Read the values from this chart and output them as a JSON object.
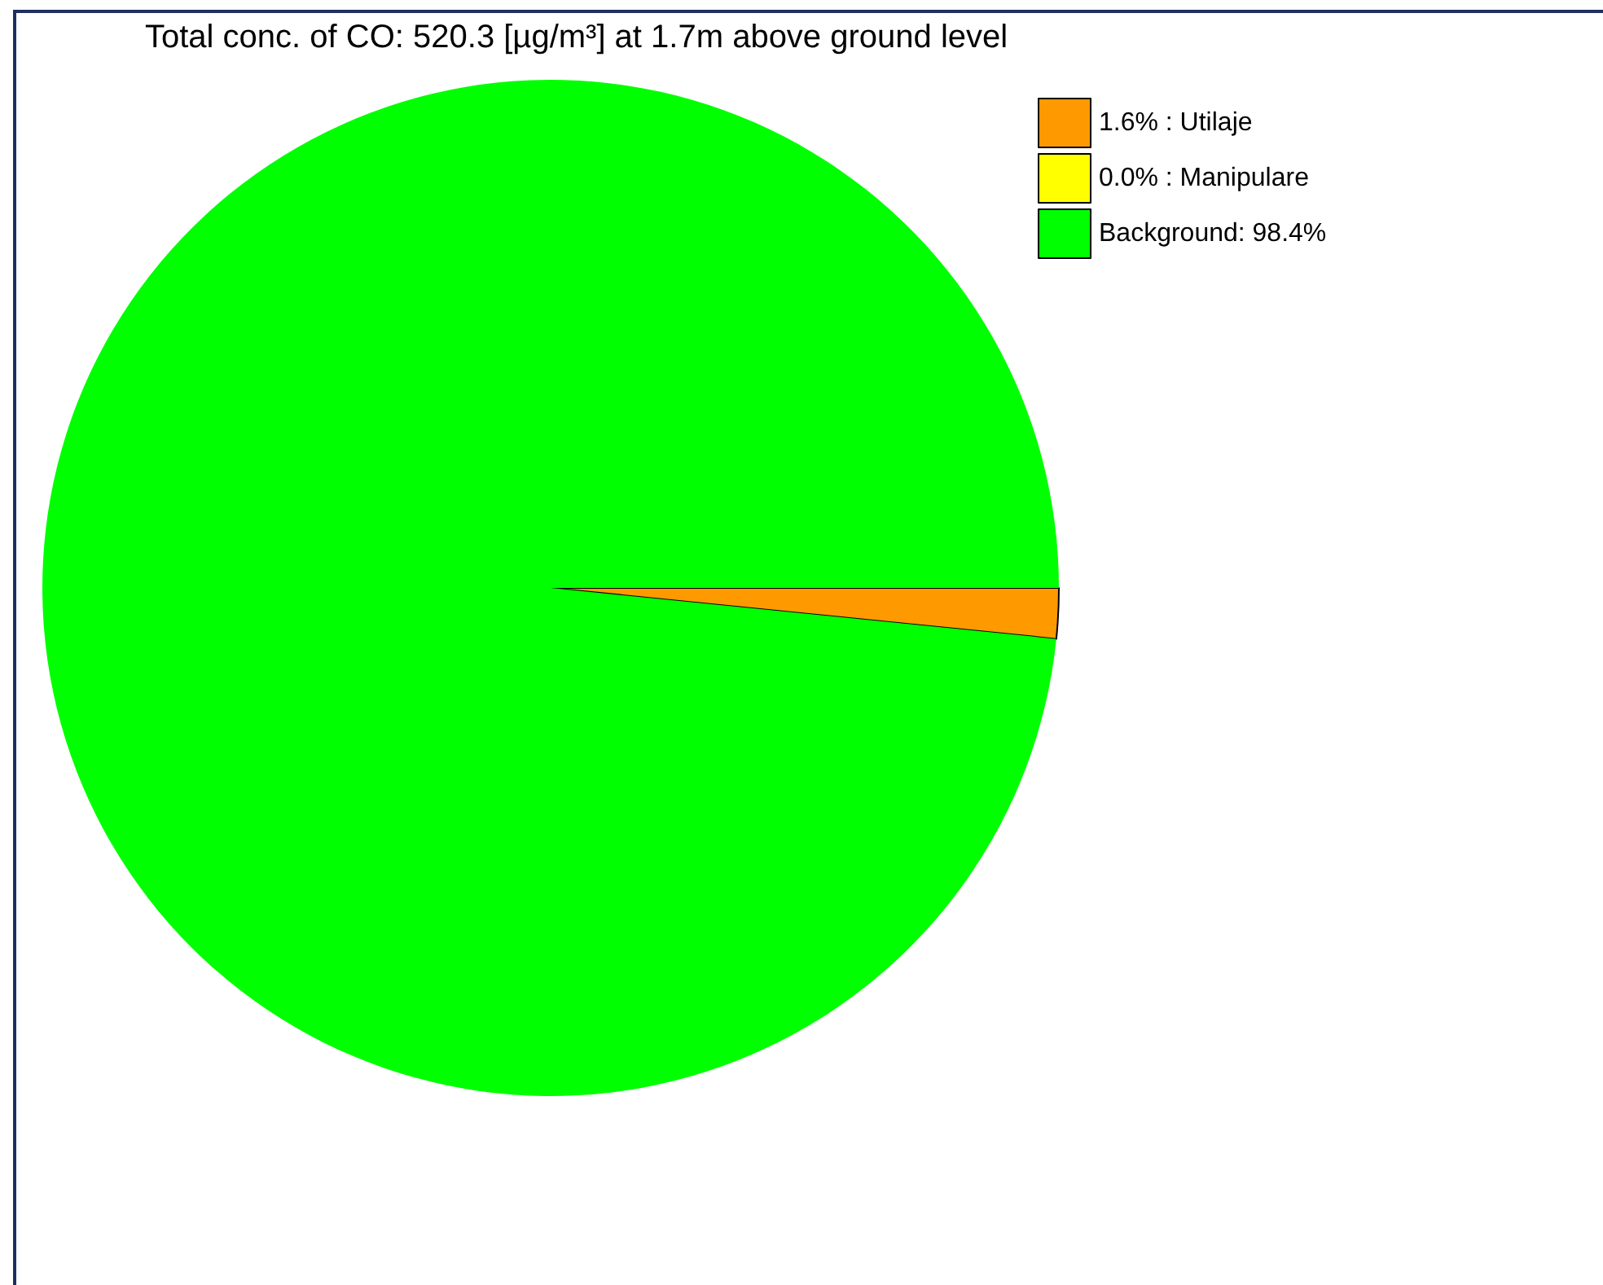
{
  "chart_data": {
    "type": "pie",
    "title": "Total conc. of CO: 520.3 [µg/m³] at 1.7m above ground level",
    "categories": [
      "1.6% : Utilaje",
      "0.0% : Manipulare",
      "Background: 98.4%"
    ],
    "values": [
      1.6,
      0.0,
      98.4
    ],
    "colors": [
      "#ff9900",
      "#ffff00",
      "#00ff00"
    ],
    "legend": "top right"
  }
}
